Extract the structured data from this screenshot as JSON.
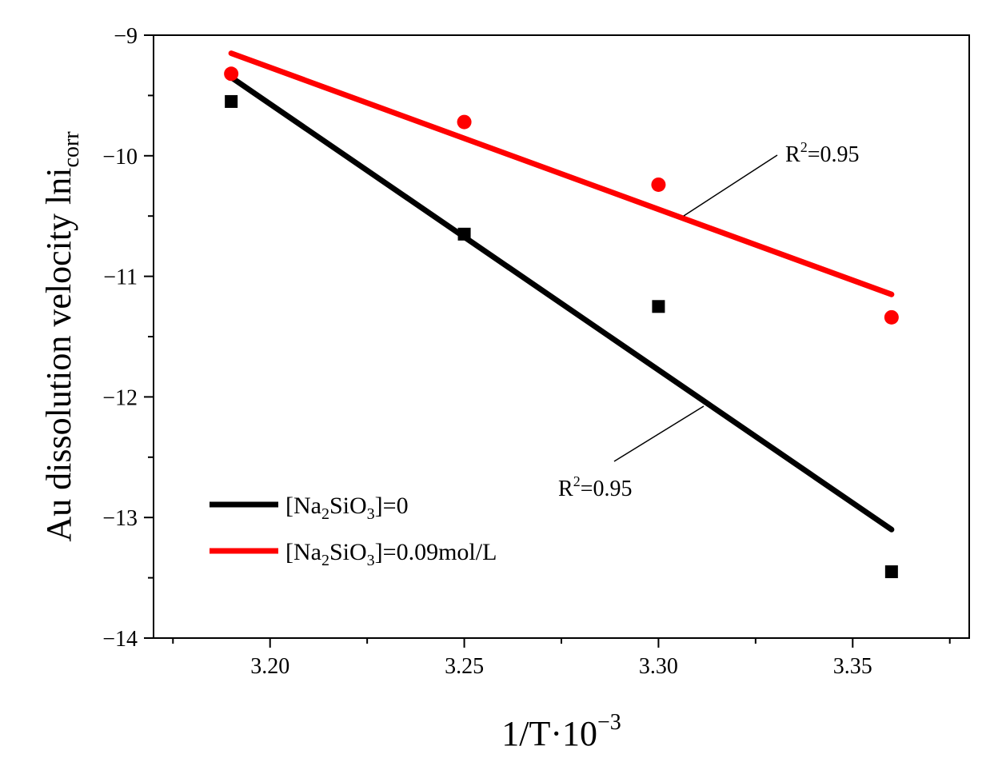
{
  "chart_data": {
    "type": "scatter",
    "xlabel": {
      "main": "1/T·10",
      "sup": "−3"
    },
    "ylabel": {
      "main": "Au dissolution velocity lni",
      "sub": "corr"
    },
    "xlim": [
      3.17,
      3.38
    ],
    "ylim": [
      -14,
      -9
    ],
    "x_ticks": [
      3.2,
      3.25,
      3.3,
      3.35
    ],
    "x_tick_labels": [
      "3.20",
      "3.25",
      "3.30",
      "3.35"
    ],
    "y_ticks": [
      -9,
      -10,
      -11,
      -12,
      -13,
      -14
    ],
    "y_tick_labels": [
      "−9",
      "−10",
      "−11",
      "−12",
      "−13",
      "−14"
    ],
    "legend_position": "lower-left",
    "series": [
      {
        "name": "[Na2SiO3]=0",
        "legend": {
          "pre": "[Na",
          "sub1": "2",
          "mid": "SiO",
          "sub2": "3",
          "post": "]=0"
        },
        "color": "#000000",
        "marker": "square",
        "x": [
          3.19,
          3.25,
          3.3,
          3.36
        ],
        "y": [
          -9.55,
          -10.65,
          -11.25,
          -13.45
        ],
        "fit": {
          "x": [
            3.19,
            3.36
          ],
          "y": [
            -9.35,
            -13.1
          ]
        },
        "annotation": {
          "text": "R",
          "sup": "2",
          "post": "=0.95"
        }
      },
      {
        "name": "[Na2SiO3]=0.09mol/L",
        "legend": {
          "pre": "[Na",
          "sub1": "2",
          "mid": "SiO",
          "sub2": "3",
          "post": "]=0.09mol/L"
        },
        "color": "#ff0000",
        "marker": "circle",
        "x": [
          3.19,
          3.25,
          3.3,
          3.36
        ],
        "y": [
          -9.32,
          -9.72,
          -10.24,
          -11.34
        ],
        "fit": {
          "x": [
            3.19,
            3.36
          ],
          "y": [
            -9.15,
            -11.15
          ]
        },
        "annotation": {
          "text": "R",
          "sup": "2",
          "post": "=0.95"
        }
      }
    ]
  }
}
